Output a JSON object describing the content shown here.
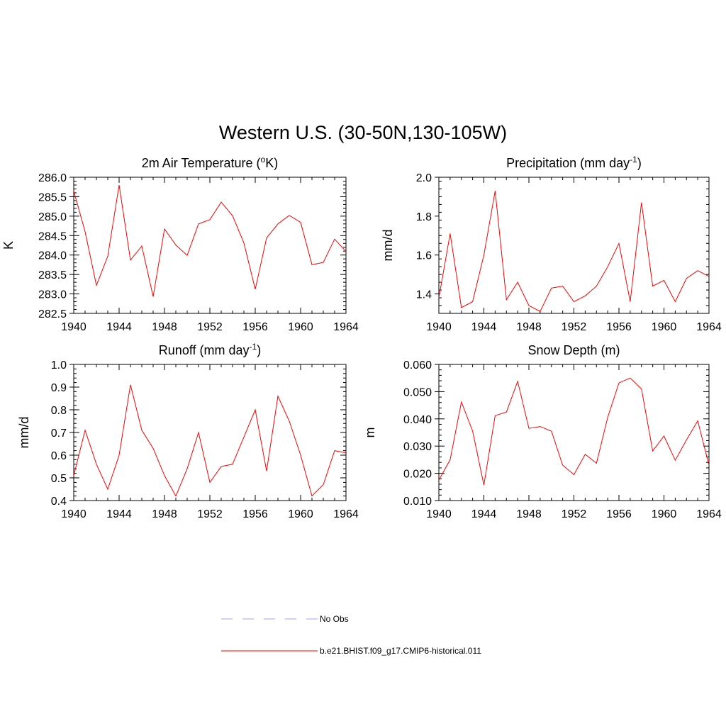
{
  "figure": {
    "title": "Western U.S. (30-50N,130-105W)"
  },
  "chart_data": [
    {
      "type": "line",
      "title": "2m Air Temperature (",
      "title_sup": "o",
      "title_end": "K)",
      "ylabel": "K",
      "xlim": [
        1940,
        1964
      ],
      "ylim": [
        282.5,
        286.0
      ],
      "xticks": [
        1940,
        1944,
        1948,
        1952,
        1956,
        1960,
        1964
      ],
      "yticks": [
        "282.5",
        "283.0",
        "283.5",
        "284.0",
        "284.5",
        "285.0",
        "285.5",
        "286.0"
      ],
      "x": [
        1940,
        1941,
        1942,
        1943,
        1944,
        1945,
        1946,
        1947,
        1948,
        1949,
        1950,
        1951,
        1952,
        1953,
        1954,
        1955,
        1956,
        1957,
        1958,
        1959,
        1960,
        1961,
        1962,
        1963,
        1964
      ],
      "series": [
        {
          "values": [
            285.65,
            284.6,
            283.22,
            283.97,
            285.8,
            283.87,
            284.23,
            282.93,
            284.67,
            284.26,
            283.99,
            284.8,
            284.91,
            285.36,
            285.01,
            284.31,
            283.12,
            284.44,
            284.8,
            285.02,
            284.84,
            283.75,
            283.81,
            284.41,
            284.09
          ]
        }
      ]
    },
    {
      "type": "line",
      "title": "Precipitation (mm day",
      "title_sup": "-1",
      "title_end": ")",
      "ylabel": "mm/d",
      "xlim": [
        1940,
        1964
      ],
      "ylim": [
        1.3,
        2.0
      ],
      "xticks": [
        1940,
        1944,
        1948,
        1952,
        1956,
        1960,
        1964
      ],
      "yticks": [
        "1.4",
        "1.6",
        "1.8",
        "2.0"
      ],
      "x": [
        1940,
        1941,
        1942,
        1943,
        1944,
        1945,
        1946,
        1947,
        1948,
        1949,
        1950,
        1951,
        1952,
        1953,
        1954,
        1955,
        1956,
        1957,
        1958,
        1959,
        1960,
        1961,
        1962,
        1963,
        1964
      ],
      "series": [
        {
          "values": [
            1.38,
            1.71,
            1.33,
            1.36,
            1.6,
            1.93,
            1.37,
            1.46,
            1.34,
            1.31,
            1.43,
            1.44,
            1.36,
            1.39,
            1.44,
            1.54,
            1.66,
            1.36,
            1.87,
            1.44,
            1.47,
            1.36,
            1.48,
            1.52,
            1.49
          ]
        }
      ]
    },
    {
      "type": "line",
      "title": "Runoff (mm day",
      "title_sup": "-1",
      "title_end": ")",
      "ylabel": "mm/d",
      "xlim": [
        1940,
        1964
      ],
      "ylim": [
        0.4,
        1.0
      ],
      "xticks": [
        1940,
        1944,
        1948,
        1952,
        1956,
        1960,
        1964
      ],
      "yticks": [
        "0.4",
        "0.5",
        "0.6",
        "0.7",
        "0.8",
        "0.9",
        "1.0"
      ],
      "x": [
        1940,
        1941,
        1942,
        1943,
        1944,
        1945,
        1946,
        1947,
        1948,
        1949,
        1950,
        1951,
        1952,
        1953,
        1954,
        1955,
        1956,
        1957,
        1958,
        1959,
        1960,
        1961,
        1962,
        1963,
        1964
      ],
      "series": [
        {
          "values": [
            0.51,
            0.71,
            0.56,
            0.45,
            0.6,
            0.91,
            0.71,
            0.63,
            0.51,
            0.42,
            0.54,
            0.7,
            0.48,
            0.55,
            0.56,
            0.68,
            0.8,
            0.53,
            0.86,
            0.75,
            0.6,
            0.42,
            0.47,
            0.62,
            0.61
          ]
        }
      ]
    },
    {
      "type": "line",
      "title": "Snow Depth (m)",
      "title_sup": "",
      "title_end": "",
      "ylabel": "m",
      "xlim": [
        1940,
        1964
      ],
      "ylim": [
        0.01,
        0.06
      ],
      "xticks": [
        1940,
        1944,
        1948,
        1952,
        1956,
        1960,
        1964
      ],
      "yticks": [
        "0.010",
        "0.020",
        "0.030",
        "0.040",
        "0.050",
        "0.060"
      ],
      "x": [
        1940,
        1941,
        1942,
        1943,
        1944,
        1945,
        1946,
        1947,
        1948,
        1949,
        1950,
        1951,
        1952,
        1953,
        1954,
        1955,
        1956,
        1957,
        1958,
        1959,
        1960,
        1961,
        1962,
        1963,
        1964
      ],
      "series": [
        {
          "values": [
            0.0175,
            0.025,
            0.0462,
            0.0355,
            0.0157,
            0.0412,
            0.0425,
            0.0538,
            0.0365,
            0.0372,
            0.0355,
            0.023,
            0.0195,
            0.027,
            0.0237,
            0.0405,
            0.0532,
            0.055,
            0.051,
            0.0282,
            0.0337,
            0.0248,
            0.0323,
            0.0393,
            0.023
          ]
        }
      ]
    }
  ],
  "legend": {
    "position": "bottom-center",
    "items": [
      {
        "label": "No Obs",
        "color": "#a0a0ff",
        "style": "dashed"
      },
      {
        "label": "b.e21.BHIST.f09_g17.CMIP6-historical.011",
        "color": "#ff0000",
        "style": "solid"
      }
    ]
  },
  "colors": {
    "series_line": "#ff0000",
    "obs_line": "#a0a0ff"
  }
}
